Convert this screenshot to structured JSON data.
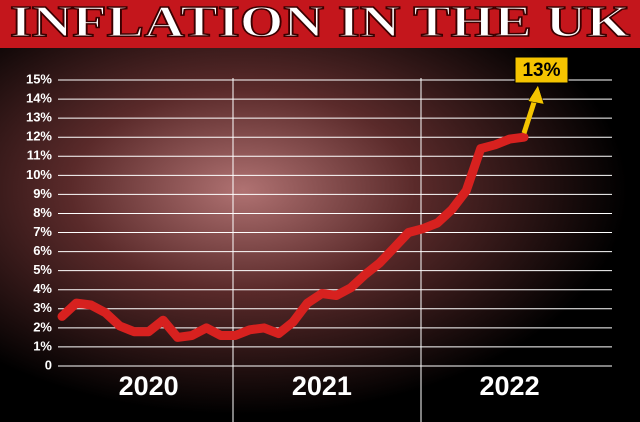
{
  "chart_data": {
    "type": "line",
    "title": "INFLATION IN THE UK",
    "categories": [
      null,
      null,
      null,
      null,
      null,
      null,
      "2020",
      null,
      null,
      null,
      null,
      null,
      null,
      null,
      null,
      null,
      null,
      null,
      "2021",
      null,
      null,
      null,
      null,
      null,
      null,
      null,
      null,
      null,
      null,
      null,
      null,
      "2022",
      null
    ],
    "values": [
      2.6,
      3.3,
      3.2,
      2.8,
      2.1,
      1.8,
      1.8,
      2.4,
      1.5,
      1.6,
      2.0,
      1.6,
      1.6,
      1.9,
      2.0,
      1.7,
      2.3,
      3.3,
      3.8,
      3.7,
      4.1,
      4.8,
      5.4,
      6.2,
      7.0,
      7.2,
      7.5,
      8.2,
      9.2,
      11.4,
      11.6,
      11.9,
      12.0
    ],
    "color": "#d7211f",
    "ylim": [
      0,
      15
    ],
    "yticks": [
      0,
      {
        "value": 1,
        "label": "1%"
      },
      {
        "value": 2,
        "label": "2%"
      },
      {
        "value": 3,
        "label": "3%"
      },
      {
        "value": 4,
        "label": "4%"
      },
      {
        "value": 5,
        "label": "5%"
      },
      {
        "value": 6,
        "label": "6%"
      },
      {
        "value": 7,
        "label": "7%"
      },
      {
        "value": 8,
        "label": "8%"
      },
      {
        "value": 9,
        "label": "9%"
      },
      {
        "value": 10,
        "label": "10%"
      },
      {
        "value": 11,
        "label": "11%"
      },
      {
        "value": 12,
        "label": "12%"
      },
      {
        "value": 13,
        "label": "13%"
      },
      {
        "value": 14,
        "label": "14%"
      },
      {
        "value": 15,
        "label": "15%"
      }
    ],
    "grid": true,
    "annotation": "13%"
  }
}
